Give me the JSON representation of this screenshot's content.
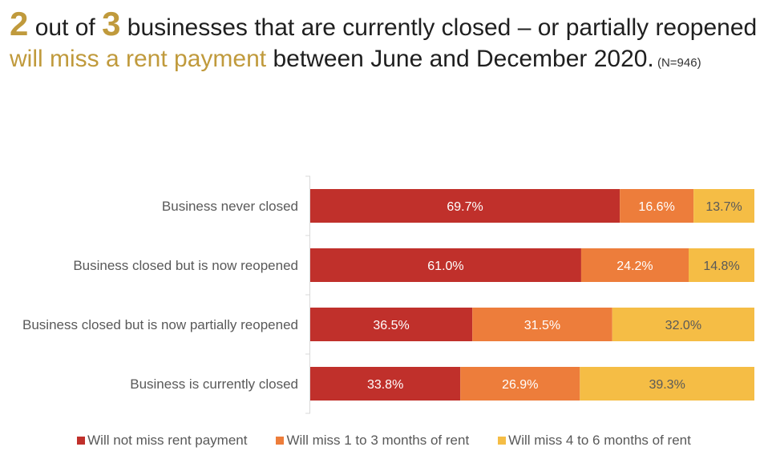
{
  "headline": {
    "num1": "2",
    "part1": " out of ",
    "num2": "3",
    "part2": " businesses that are currently closed – or partially reopened ",
    "highlight": "will miss a rent payment",
    "part3": " between June and December 2020.",
    "sample": " (N=946)"
  },
  "chart_data": {
    "type": "bar",
    "orientation": "horizontal",
    "stacked": true,
    "categories": [
      "Business never closed",
      "Business closed but is now reopened",
      "Business closed but is now partially reopened",
      "Business is currently closed"
    ],
    "series": [
      {
        "name": "Will not miss rent payment",
        "color": "#c0302b",
        "values": [
          69.7,
          61.0,
          36.5,
          33.8
        ],
        "labels": [
          "69.7%",
          "61.0%",
          "36.5%",
          "33.8%"
        ]
      },
      {
        "name": "Will miss 1 to 3 months of rent",
        "color": "#ed7d3b",
        "values": [
          16.6,
          24.2,
          31.5,
          26.9
        ],
        "labels": [
          "16.6%",
          "24.2%",
          "31.5%",
          "26.9%"
        ]
      },
      {
        "name": "Will miss 4 to 6 months of rent",
        "color": "#f5bd45",
        "values": [
          13.7,
          14.8,
          32.0,
          39.3
        ],
        "labels": [
          "13.7%",
          "14.8%",
          "32.0%",
          "39.3%"
        ]
      }
    ],
    "xlim": [
      0,
      100
    ],
    "legend_position": "bottom",
    "grid": false
  }
}
